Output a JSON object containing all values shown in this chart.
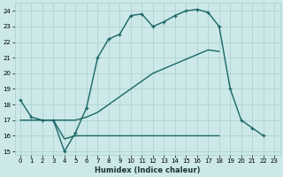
{
  "xlabel": "Humidex (Indice chaleur)",
  "bg_color": "#cce8e8",
  "grid_color": "#aacfcf",
  "line_color": "#1a6666",
  "xlim": [
    -0.5,
    23.5
  ],
  "ylim": [
    14.8,
    24.5
  ],
  "xticks": [
    0,
    1,
    2,
    3,
    4,
    5,
    6,
    7,
    8,
    9,
    10,
    11,
    12,
    13,
    14,
    15,
    16,
    17,
    18,
    19,
    20,
    21,
    22,
    23
  ],
  "yticks": [
    15,
    16,
    17,
    18,
    19,
    20,
    21,
    22,
    23,
    24
  ],
  "line1_x": [
    0,
    1,
    2,
    3,
    4,
    5,
    6,
    7,
    8,
    9,
    10,
    11,
    12,
    13,
    14,
    15,
    16,
    17,
    18,
    19,
    20,
    21,
    22
  ],
  "line1_y": [
    18.3,
    17.2,
    17.0,
    17.0,
    15.0,
    16.2,
    17.8,
    21.0,
    22.2,
    22.5,
    23.7,
    23.8,
    23.0,
    23.3,
    23.7,
    24.0,
    24.1,
    23.9,
    23.0,
    19.0,
    17.0,
    16.5,
    16.0
  ],
  "line2_x": [
    0,
    2,
    3,
    4,
    5,
    6,
    7,
    8,
    9,
    10,
    11,
    12,
    13,
    14,
    15,
    16,
    17,
    18
  ],
  "line2_y": [
    17.0,
    17.0,
    17.0,
    17.0,
    17.0,
    17.2,
    17.5,
    18.0,
    18.5,
    19.0,
    19.5,
    20.0,
    20.3,
    20.6,
    20.9,
    21.2,
    21.5,
    21.4
  ],
  "line3_x": [
    3,
    4,
    5,
    6,
    7,
    8,
    9,
    10,
    11,
    12,
    13,
    14,
    15,
    16,
    17,
    18
  ],
  "line3_y": [
    17.0,
    15.8,
    16.0,
    16.0,
    16.0,
    16.0,
    16.0,
    16.0,
    16.0,
    16.0,
    16.0,
    16.0,
    16.0,
    16.0,
    16.0,
    16.0
  ],
  "linewidth": 1.0,
  "marker_size": 3.5,
  "tick_fontsize": 5,
  "xlabel_fontsize": 6,
  "xlabel_color": "#1a3333"
}
